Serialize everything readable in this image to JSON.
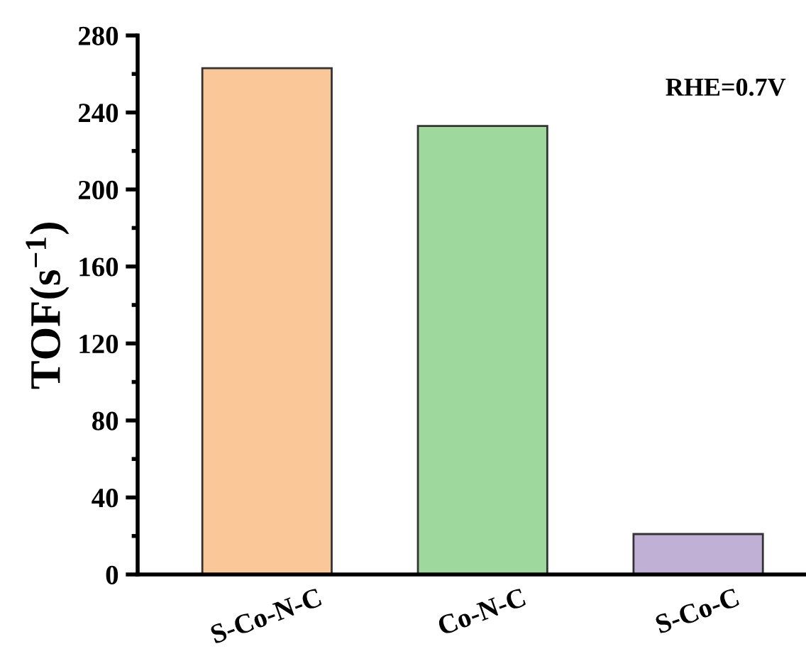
{
  "chart_data": {
    "type": "bar",
    "ylabel": "TOF(s$^{−1}$)",
    "categories": [
      "S-Co-N-C",
      "Co-N-C",
      "S-Co-C"
    ],
    "values": [
      263,
      233,
      21
    ],
    "colors": [
      "#fac898",
      "#9ed89c",
      "#c0b0d6"
    ],
    "ylim": [
      0,
      280
    ],
    "yticks": [
      0,
      40,
      80,
      120,
      160,
      200,
      240,
      280
    ],
    "grid": false,
    "legend": false,
    "annotations": [
      "RHE=0.7V"
    ]
  }
}
